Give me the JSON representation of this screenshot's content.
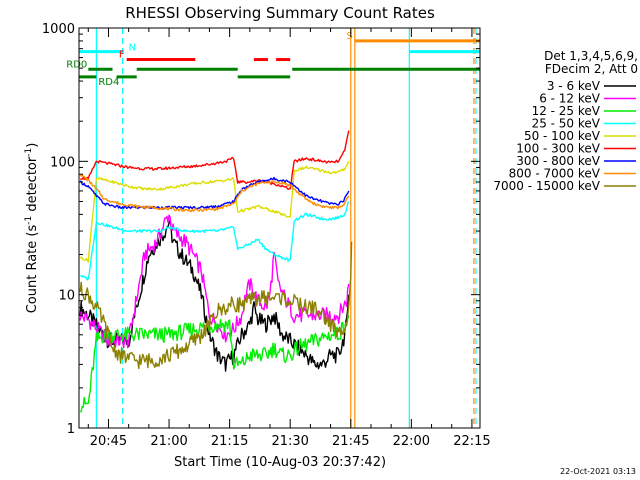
{
  "chart_data": {
    "type": "line",
    "title": "RHESSI Observing Summary Count Rates",
    "xlabel": "Start Time (10-Aug-03 20:37:42)",
    "ylabel": "Count Rate (s",
    "ylabel_sup1": "-1",
    "ylabel_mid": " detector",
    "ylabel_sup2": "-1",
    "ylabel_end": ")",
    "y_scale": "log",
    "ylim": [
      1,
      1000
    ],
    "xlim_minutes": [
      37.7,
      137.0
    ],
    "x_ticks": [
      {
        "label": "20:45",
        "minutes": 45
      },
      {
        "label": "21:00",
        "minutes": 60
      },
      {
        "label": "21:15",
        "minutes": 75
      },
      {
        "label": "21:30",
        "minutes": 90
      },
      {
        "label": "21:45",
        "minutes": 105
      },
      {
        "label": "22:00",
        "minutes": 120
      },
      {
        "label": "22:15",
        "minutes": 135
      }
    ],
    "y_ticks": [
      {
        "label": "1",
        "value": 1
      },
      {
        "label": "10",
        "value": 10
      },
      {
        "label": "100",
        "value": 100
      },
      {
        "label": "1000",
        "value": 1000
      }
    ],
    "legend_header": [
      "Det 1,3,4,5,6,9,",
      "FDecim 2, Att 0"
    ],
    "legend_placement": "right",
    "date_stamp": "22-Oct-2021 03:13",
    "series": [
      {
        "name": "3 - 6 keV",
        "color": "#000000",
        "points": [
          [
            38,
            8
          ],
          [
            40,
            7
          ],
          [
            45,
            4.5
          ],
          [
            50,
            4.5
          ],
          [
            55,
            20
          ],
          [
            59,
            30
          ],
          [
            60,
            35
          ],
          [
            61,
            25
          ],
          [
            63,
            20
          ],
          [
            66,
            15
          ],
          [
            68,
            10
          ],
          [
            70,
            5
          ],
          [
            72,
            3.5
          ],
          [
            74,
            3
          ],
          [
            76,
            3.5
          ],
          [
            78,
            5
          ],
          [
            80,
            6
          ],
          [
            81,
            8
          ],
          [
            82,
            6.5
          ],
          [
            84,
            6
          ],
          [
            86,
            7
          ],
          [
            88,
            5
          ],
          [
            90,
            4.5
          ],
          [
            94,
            3.5
          ],
          [
            96,
            3
          ],
          [
            98,
            3
          ],
          [
            100,
            3.5
          ],
          [
            102,
            3.5
          ],
          [
            103.5,
            5
          ],
          [
            104,
            6
          ],
          [
            104.5,
            10
          ]
        ]
      },
      {
        "name": "6 - 12 keV",
        "color": "#ff00ff",
        "points": [
          [
            38,
            7
          ],
          [
            40,
            6.5
          ],
          [
            45,
            4.5
          ],
          [
            50,
            4.5
          ],
          [
            54,
            20
          ],
          [
            57,
            25
          ],
          [
            59,
            35
          ],
          [
            60,
            40
          ],
          [
            61,
            30
          ],
          [
            64,
            25
          ],
          [
            66,
            20
          ],
          [
            68,
            15
          ],
          [
            70,
            7
          ],
          [
            72,
            6
          ],
          [
            74,
            5
          ],
          [
            76,
            5.5
          ],
          [
            78,
            7
          ],
          [
            79,
            10
          ],
          [
            80,
            12
          ],
          [
            82,
            9
          ],
          [
            84,
            8
          ],
          [
            85,
            10
          ],
          [
            86,
            20
          ],
          [
            87,
            12
          ],
          [
            89,
            9
          ],
          [
            91,
            7
          ],
          [
            94,
            7
          ],
          [
            97,
            7
          ],
          [
            100,
            7
          ],
          [
            102,
            7
          ],
          [
            103,
            8
          ],
          [
            104,
            9
          ],
          [
            104.5,
            12
          ]
        ]
      },
      {
        "name": "12 - 25 keV",
        "color": "#00ee00",
        "points": [
          [
            38,
            1.5
          ],
          [
            40,
            1.5
          ],
          [
            42,
            4.5
          ],
          [
            44,
            5
          ],
          [
            50,
            5
          ],
          [
            56,
            5
          ],
          [
            60,
            5
          ],
          [
            66,
            5.5
          ],
          [
            72,
            6
          ],
          [
            75,
            6
          ],
          [
            76,
            3
          ],
          [
            78,
            3
          ],
          [
            80,
            3.5
          ],
          [
            82,
            3.5
          ],
          [
            84,
            3.5
          ],
          [
            86,
            4
          ],
          [
            88,
            3.5
          ],
          [
            90,
            3.5
          ],
          [
            92,
            4
          ],
          [
            96,
            4.5
          ],
          [
            100,
            5
          ],
          [
            102,
            5
          ],
          [
            103.5,
            6
          ],
          [
            104.5,
            7
          ]
        ]
      },
      {
        "name": "25 - 50 keV",
        "color": "#00ffff",
        "points": [
          [
            38,
            14
          ],
          [
            40,
            13
          ],
          [
            42,
            35
          ],
          [
            46,
            32
          ],
          [
            50,
            30
          ],
          [
            54,
            30
          ],
          [
            58,
            30
          ],
          [
            60,
            32
          ],
          [
            62,
            31
          ],
          [
            64,
            30
          ],
          [
            68,
            30
          ],
          [
            72,
            30
          ],
          [
            74,
            31
          ],
          [
            76,
            32
          ],
          [
            77,
            22
          ],
          [
            80,
            24
          ],
          [
            82,
            26
          ],
          [
            84,
            22
          ],
          [
            86,
            20
          ],
          [
            88,
            19
          ],
          [
            90,
            18
          ],
          [
            91,
            36
          ],
          [
            94,
            40
          ],
          [
            98,
            37
          ],
          [
            100,
            37
          ],
          [
            102,
            38
          ],
          [
            103.5,
            40
          ],
          [
            104.5,
            50
          ]
        ]
      },
      {
        "name": "50 - 100 keV",
        "color": "#dddd00",
        "points": [
          [
            38,
            19
          ],
          [
            40,
            18
          ],
          [
            42,
            75
          ],
          [
            46,
            70
          ],
          [
            50,
            65
          ],
          [
            54,
            62
          ],
          [
            58,
            62
          ],
          [
            62,
            65
          ],
          [
            66,
            68
          ],
          [
            70,
            70
          ],
          [
            74,
            72
          ],
          [
            76,
            74
          ],
          [
            77,
            42
          ],
          [
            80,
            44
          ],
          [
            82,
            46
          ],
          [
            84,
            44
          ],
          [
            86,
            42
          ],
          [
            88,
            40
          ],
          [
            90,
            38
          ],
          [
            91,
            85
          ],
          [
            94,
            90
          ],
          [
            98,
            85
          ],
          [
            100,
            82
          ],
          [
            102,
            83
          ],
          [
            103.5,
            88
          ],
          [
            104.5,
            100
          ]
        ]
      },
      {
        "name": "100 - 300 keV",
        "color": "#ff0000",
        "points": [
          [
            38,
            75
          ],
          [
            40,
            74
          ],
          [
            42,
            100
          ],
          [
            46,
            95
          ],
          [
            50,
            90
          ],
          [
            54,
            88
          ],
          [
            58,
            88
          ],
          [
            62,
            90
          ],
          [
            66,
            92
          ],
          [
            70,
            95
          ],
          [
            74,
            100
          ],
          [
            76,
            105
          ],
          [
            77,
            70
          ],
          [
            80,
            70
          ],
          [
            82,
            72
          ],
          [
            84,
            70
          ],
          [
            86,
            68
          ],
          [
            88,
            65
          ],
          [
            90,
            62
          ],
          [
            91,
            100
          ],
          [
            94,
            105
          ],
          [
            98,
            100
          ],
          [
            100,
            98
          ],
          [
            102,
            100
          ],
          [
            103.5,
            120
          ],
          [
            104.5,
            170
          ]
        ]
      },
      {
        "name": "300 - 800 keV",
        "color": "#0000ff",
        "points": [
          [
            38,
            70
          ],
          [
            40,
            65
          ],
          [
            42,
            55
          ],
          [
            44,
            48
          ],
          [
            48,
            45
          ],
          [
            52,
            45
          ],
          [
            56,
            45
          ],
          [
            60,
            45
          ],
          [
            64,
            45
          ],
          [
            68,
            45
          ],
          [
            72,
            46
          ],
          [
            76,
            50
          ],
          [
            78,
            62
          ],
          [
            80,
            66
          ],
          [
            82,
            70
          ],
          [
            84,
            72
          ],
          [
            86,
            74
          ],
          [
            88,
            72
          ],
          [
            90,
            70
          ],
          [
            92,
            62
          ],
          [
            94,
            55
          ],
          [
            96,
            52
          ],
          [
            98,
            50
          ],
          [
            100,
            48
          ],
          [
            102,
            48
          ],
          [
            103.5,
            52
          ],
          [
            104.5,
            60
          ]
        ]
      },
      {
        "name": "800 - 7000 keV",
        "color": "#ff8c00",
        "points": [
          [
            38,
            80
          ],
          [
            40,
            72
          ],
          [
            42,
            62
          ],
          [
            44,
            52
          ],
          [
            48,
            48
          ],
          [
            52,
            46
          ],
          [
            56,
            45
          ],
          [
            60,
            44
          ],
          [
            64,
            43
          ],
          [
            68,
            43
          ],
          [
            72,
            44
          ],
          [
            76,
            48
          ],
          [
            78,
            60
          ],
          [
            80,
            64
          ],
          [
            82,
            68
          ],
          [
            84,
            70
          ],
          [
            86,
            70
          ],
          [
            88,
            69
          ],
          [
            90,
            66
          ],
          [
            92,
            58
          ],
          [
            94,
            52
          ],
          [
            96,
            48
          ],
          [
            98,
            46
          ],
          [
            100,
            45
          ],
          [
            102,
            45
          ],
          [
            103.5,
            48
          ],
          [
            104.5,
            55
          ]
        ]
      },
      {
        "name": "7000 - 15000 keV",
        "color": "#8b8000",
        "points": [
          [
            38,
            11
          ],
          [
            40,
            10
          ],
          [
            42,
            8
          ],
          [
            44,
            6
          ],
          [
            46,
            4
          ],
          [
            48,
            3.5
          ],
          [
            52,
            3.2
          ],
          [
            56,
            3.2
          ],
          [
            60,
            3.5
          ],
          [
            64,
            4
          ],
          [
            68,
            5
          ],
          [
            70,
            6
          ],
          [
            72,
            7.5
          ],
          [
            74,
            8
          ],
          [
            76,
            8.5
          ],
          [
            78,
            8.5
          ],
          [
            80,
            9
          ],
          [
            82,
            9.5
          ],
          [
            84,
            9.5
          ],
          [
            86,
            9.5
          ],
          [
            88,
            9.5
          ],
          [
            90,
            9
          ],
          [
            92,
            8.5
          ],
          [
            94,
            8
          ],
          [
            96,
            8
          ],
          [
            98,
            7
          ],
          [
            100,
            6
          ],
          [
            102,
            5
          ],
          [
            103.5,
            6
          ],
          [
            104.5,
            8
          ],
          [
            105,
            15
          ],
          [
            105.2,
            25
          ]
        ]
      }
    ],
    "state_bars": [
      {
        "label": "N",
        "label_color": "#00ffff",
        "color": "#00ffff",
        "level": 665,
        "segments": [
          [
            37.7,
            48.5
          ],
          [
            119.5,
            137
          ]
        ]
      },
      {
        "label": "F",
        "label_color": "#ff0000",
        "color": "#ff0000",
        "level": 580,
        "segments": [
          [
            49.5,
            66.5
          ]
        ]
      },
      {
        "label": "",
        "label_color": "#ff0000",
        "color": "#ff0000",
        "level": 580,
        "segments": [
          [
            81,
            84.5
          ],
          [
            86.5,
            90
          ]
        ]
      },
      {
        "label": "S",
        "label_color": "#ff8c00",
        "color": "#ff8c00",
        "level": 800,
        "segments": [
          [
            106,
            137
          ]
        ]
      },
      {
        "label": "RD0",
        "label_color": "#008000",
        "color": "#008000",
        "level": 490,
        "segments": [
          [
            40,
            46
          ],
          [
            52,
            77
          ],
          [
            90.5,
            137
          ]
        ]
      },
      {
        "label": "RD4",
        "label_color": "#008000",
        "color": "#008000",
        "level": 430,
        "segments": [
          [
            37.7,
            42
          ],
          [
            47,
            52
          ],
          [
            77,
            90
          ]
        ]
      }
    ],
    "vlines": [
      {
        "minutes": 42,
        "color": "#00ffff",
        "dashed": false
      },
      {
        "minutes": 48.5,
        "color": "#00ffff",
        "dashed": true
      },
      {
        "minutes": 105,
        "color": "#ff8c00",
        "dashed": false
      },
      {
        "minutes": 106,
        "color": "#ff8c00",
        "dashed": false
      },
      {
        "minutes": 119.5,
        "color": "#00ffff",
        "dashed": false
      },
      {
        "minutes": 135.5,
        "color": "#ff8c00",
        "dashed": true
      },
      {
        "minutes": 136,
        "color": "#00ffff",
        "dashed": true
      }
    ]
  }
}
